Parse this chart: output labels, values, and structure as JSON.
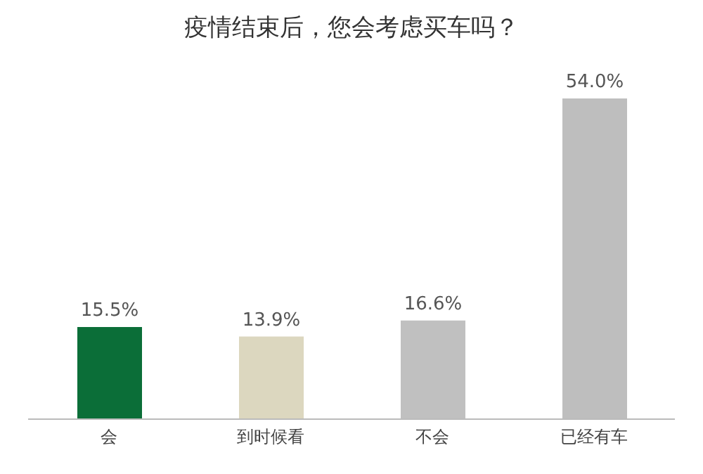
{
  "chart_data": {
    "type": "bar",
    "title": "疫情结束后，您会考虑买车吗？",
    "categories": [
      "会",
      "到时候看",
      "不会",
      "已经有车"
    ],
    "values": [
      15.5,
      13.9,
      16.6,
      54.0
    ],
    "value_labels": [
      "15.5%",
      "13.9%",
      "16.6%",
      "54.0%"
    ],
    "colors": [
      "#0b6e38",
      "#dcd7bf",
      "#c0c0c0",
      "#bebebe"
    ],
    "grid": false,
    "legend": false
  }
}
